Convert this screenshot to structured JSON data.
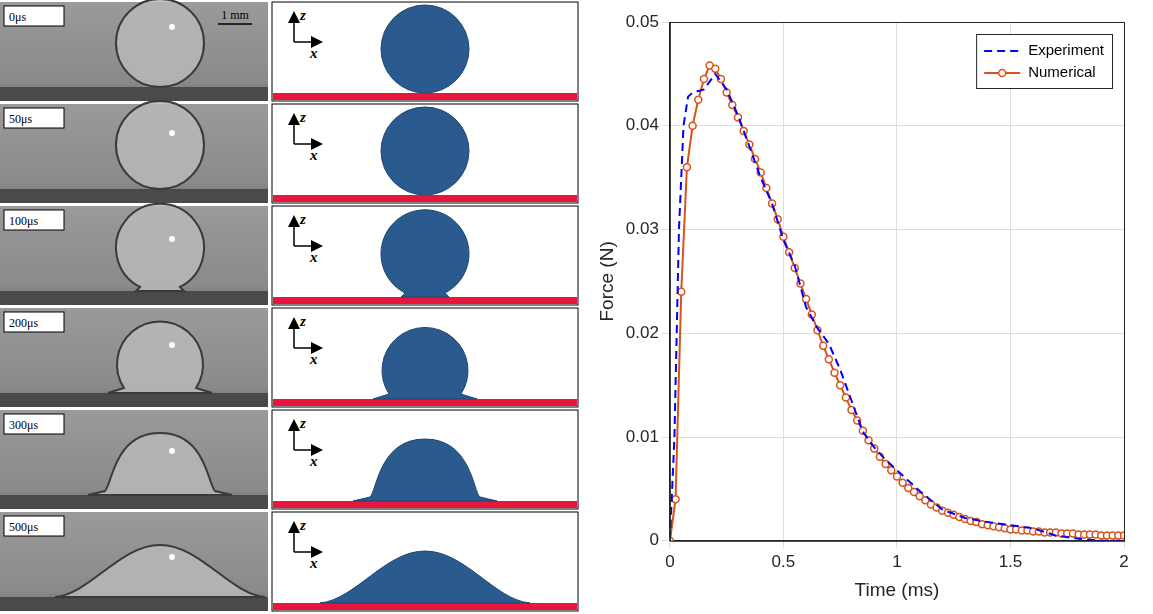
{
  "chart_data": {
    "type": "line",
    "x_label": "Time (ms)",
    "y_label": "Force (N)",
    "xlim": [
      0,
      2
    ],
    "xticks": [
      0,
      0.5,
      1,
      1.5,
      2
    ],
    "ylim": [
      0,
      0.05
    ],
    "yticks": [
      0,
      0.01,
      0.02,
      0.03,
      0.04,
      0.05
    ],
    "grid": true,
    "legend": "upper right",
    "series": [
      {
        "name": "Experiment",
        "color": "#0000ff",
        "line_style": "dashed",
        "marker": "none",
        "x": [
          0,
          0.02,
          0.04,
          0.06,
          0.08,
          0.1,
          0.15,
          0.2,
          0.25,
          0.3,
          0.35,
          0.4,
          0.45,
          0.5,
          0.55,
          0.6,
          0.65,
          0.7,
          0.75,
          0.8,
          0.85,
          0.9,
          0.95,
          1,
          1.1,
          1.2,
          1.3,
          1.4,
          1.5,
          1.6,
          1.7,
          1.8,
          1.9,
          2
        ],
        "values": [
          0,
          0.01,
          0.03,
          0.04,
          0.0428,
          0.0432,
          0.0435,
          0.045,
          0.0435,
          0.041,
          0.038,
          0.035,
          0.0325,
          0.029,
          0.0265,
          0.0225,
          0.0205,
          0.019,
          0.0165,
          0.0135,
          0.0105,
          0.009,
          0.0078,
          0.0068,
          0.0048,
          0.003,
          0.0022,
          0.0018,
          0.0015,
          0.0012,
          0.0005,
          0.0002,
          0,
          0
        ]
      },
      {
        "name": "Numerical",
        "color": "#d95319",
        "line_style": "solid",
        "marker": "circle",
        "x": [
          0,
          0.025,
          0.05,
          0.075,
          0.1,
          0.125,
          0.15,
          0.175,
          0.2,
          0.225,
          0.25,
          0.275,
          0.3,
          0.325,
          0.35,
          0.375,
          0.4,
          0.425,
          0.45,
          0.475,
          0.5,
          0.525,
          0.55,
          0.575,
          0.6,
          0.625,
          0.65,
          0.675,
          0.7,
          0.725,
          0.75,
          0.775,
          0.8,
          0.825,
          0.85,
          0.875,
          0.9,
          0.925,
          0.95,
          0.975,
          1,
          1.025,
          1.05,
          1.075,
          1.1,
          1.125,
          1.15,
          1.175,
          1.2,
          1.225,
          1.25,
          1.275,
          1.3,
          1.325,
          1.35,
          1.375,
          1.4,
          1.425,
          1.45,
          1.475,
          1.5,
          1.525,
          1.55,
          1.575,
          1.6,
          1.625,
          1.65,
          1.675,
          1.7,
          1.725,
          1.75,
          1.775,
          1.8,
          1.825,
          1.85,
          1.875,
          1.9,
          1.925,
          1.95,
          1.975,
          2
        ],
        "values": [
          0,
          0.004,
          0.024,
          0.036,
          0.04,
          0.0425,
          0.0445,
          0.0458,
          0.0455,
          0.0445,
          0.0432,
          0.042,
          0.0408,
          0.0395,
          0.0382,
          0.0368,
          0.0355,
          0.034,
          0.0325,
          0.031,
          0.0293,
          0.0278,
          0.0263,
          0.0248,
          0.0233,
          0.0218,
          0.0203,
          0.0188,
          0.0175,
          0.0162,
          0.015,
          0.0138,
          0.0126,
          0.0116,
          0.0106,
          0.0097,
          0.0089,
          0.0081,
          0.0074,
          0.0068,
          0.0062,
          0.0056,
          0.0051,
          0.0047,
          0.0043,
          0.0039,
          0.0035,
          0.0032,
          0.0029,
          0.0027,
          0.0025,
          0.0023,
          0.0021,
          0.0019,
          0.0018,
          0.0016,
          0.0015,
          0.0014,
          0.0013,
          0.0012,
          0.0011,
          0.0011,
          0.001,
          0.001,
          0.0009,
          0.0009,
          0.0008,
          0.0008,
          0.0008,
          0.0007,
          0.0007,
          0.0007,
          0.0006,
          0.0006,
          0.0006,
          0.0006,
          0.0005,
          0.0005,
          0.0005,
          0.0005,
          0.0005
        ]
      }
    ]
  },
  "images": {
    "photo_times": [
      "0μs",
      "50μs",
      "100μs",
      "200μs",
      "300μs",
      "500μs"
    ],
    "scale_bar": "1 mm",
    "axis_labels": {
      "vertical": "z",
      "horizontal": "x"
    }
  }
}
